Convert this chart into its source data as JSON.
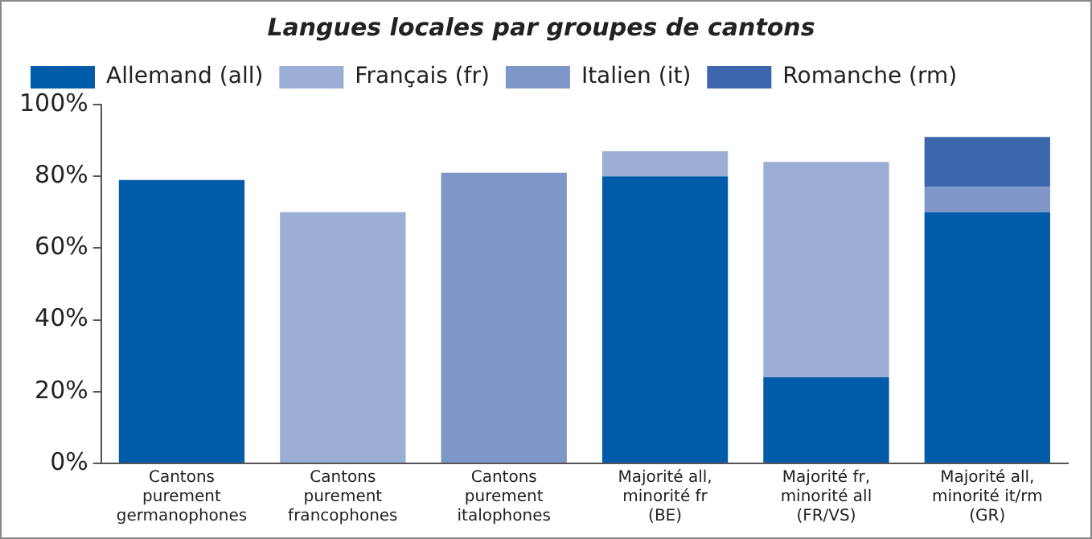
{
  "chart_data": {
    "type": "bar",
    "title": "Langues locales par groupes de cantons",
    "stacked": true,
    "categories": [
      "Cantons\npurement\ngermanophones",
      "Cantons\npurement\nfrancophones",
      "Cantons\npurement\nitalophones",
      "Majorité all,\nminorité fr\n(BE)",
      "Majorité fr,\nminorité all\n(FR/VS)",
      "Majorité all,\nminorité it/rm\n(GR)"
    ],
    "series": [
      {
        "name": "Allemand (all)",
        "color": "#005ba8",
        "values": [
          79,
          null,
          null,
          80,
          24,
          70
        ]
      },
      {
        "name": "Français (fr)",
        "color": "#9aaed6",
        "values": [
          null,
          70,
          null,
          7,
          60,
          null
        ]
      },
      {
        "name": "Italien (it)",
        "color": "#7f96c8",
        "values": [
          null,
          null,
          81,
          null,
          null,
          7
        ]
      },
      {
        "name": "Romanche (rm)",
        "color": "#3d67ad",
        "values": [
          null,
          null,
          null,
          null,
          null,
          14
        ]
      }
    ],
    "ylim": [
      0,
      100
    ],
    "yticks": [
      {
        "value": 0,
        "label": "0%"
      },
      {
        "value": 20,
        "label": "20%"
      },
      {
        "value": 40,
        "label": "40%"
      },
      {
        "value": 60,
        "label": "60%"
      },
      {
        "value": 80,
        "label": "80%"
      },
      {
        "value": 100,
        "label": "100%"
      }
    ],
    "grid": false,
    "legend": "top"
  }
}
